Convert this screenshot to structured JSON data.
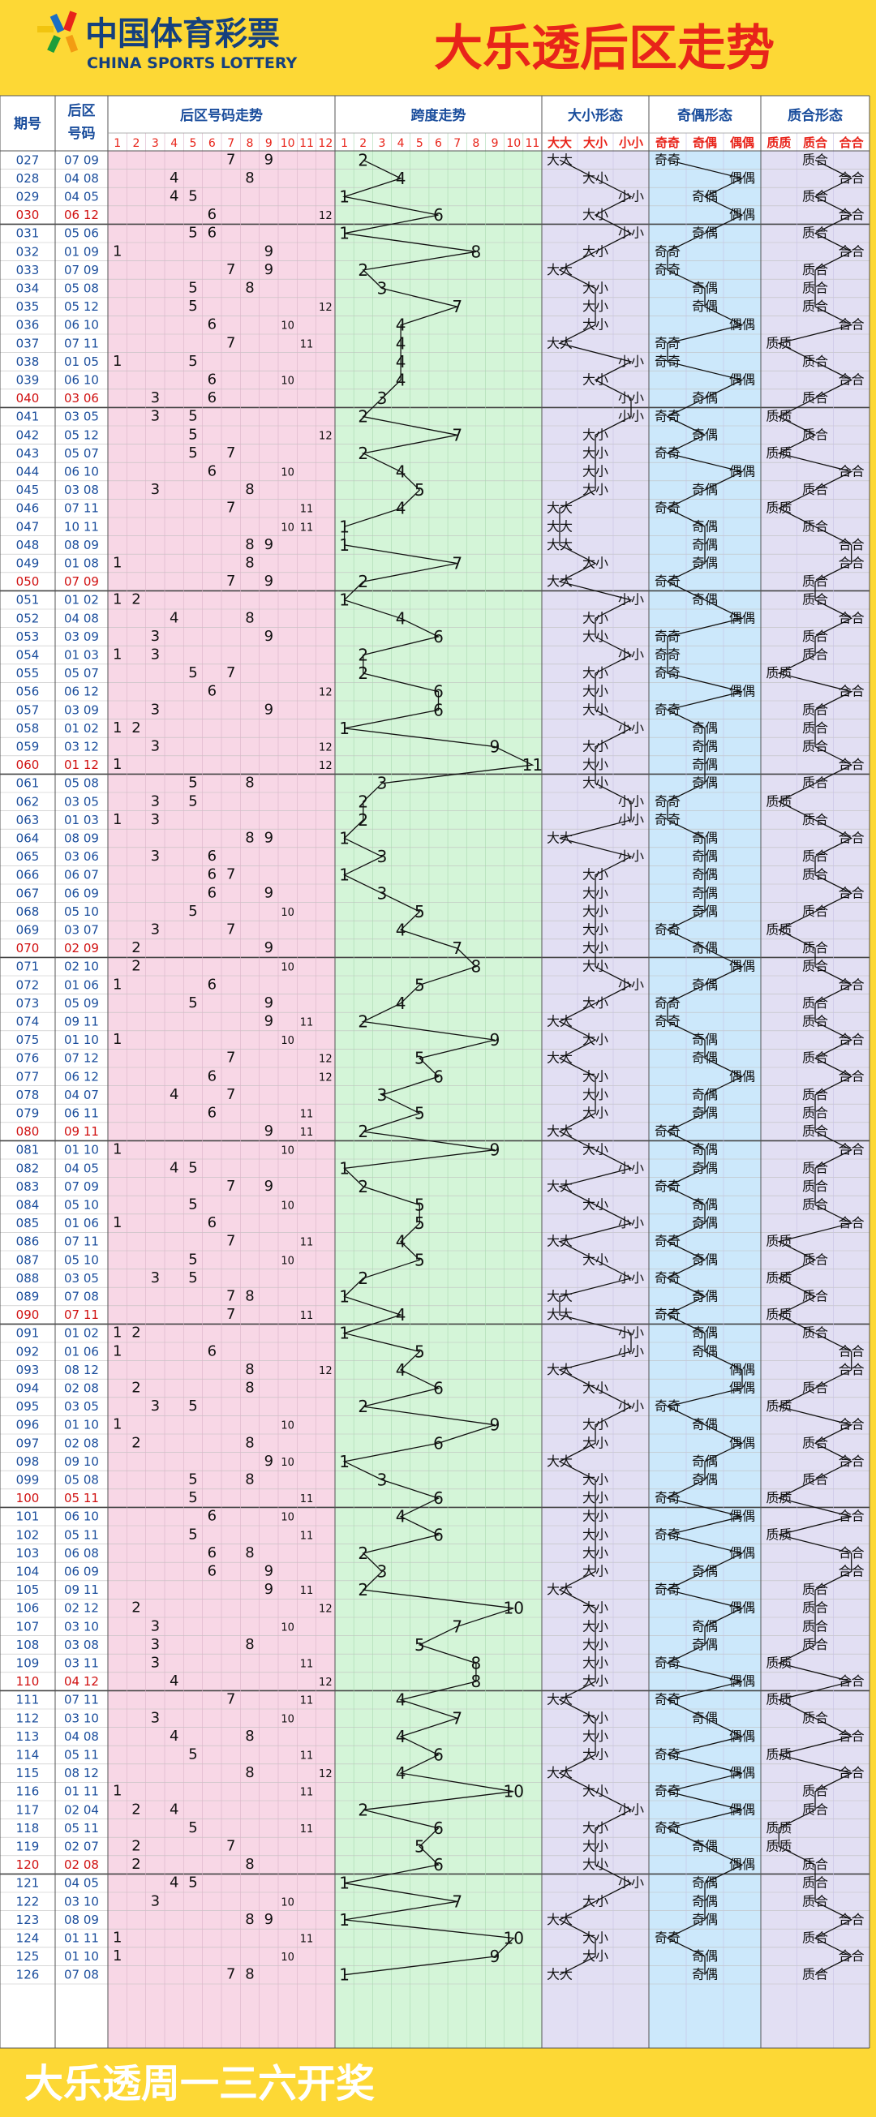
{
  "header": {
    "logo_cn": "中国体育彩票",
    "logo_en": "CHINA SPORTS LOTTERY",
    "title": "大乐透后区走势"
  },
  "columns": {
    "issue": "期号",
    "back_l1": "后区",
    "back_l2": "号码",
    "trend": "后区号码走势",
    "span": "跨度走势",
    "size": "大小形态",
    "parity": "奇偶形态",
    "prime": "质合形态"
  },
  "form_headers": {
    "size": [
      "大大",
      "大小",
      "小小"
    ],
    "parity": [
      "奇奇",
      "奇偶",
      "偶偶"
    ],
    "prime": [
      "质质",
      "质合",
      "合合"
    ]
  },
  "trend_numbers": [
    "1",
    "2",
    "3",
    "4",
    "5",
    "6",
    "7",
    "8",
    "9",
    "10",
    "11",
    "12"
  ],
  "span_numbers": [
    "1",
    "2",
    "3",
    "4",
    "5",
    "6",
    "7",
    "8",
    "9",
    "10",
    "11"
  ],
  "draws": [
    {
      "issue": "027",
      "nums": "07 09"
    },
    {
      "issue": "028",
      "nums": "04 08"
    },
    {
      "issue": "029",
      "nums": "04 05"
    },
    {
      "issue": "030",
      "nums": "06 12"
    },
    {
      "issue": "031",
      "nums": "05 06"
    },
    {
      "issue": "032",
      "nums": "01 09"
    },
    {
      "issue": "033",
      "nums": "07 09"
    },
    {
      "issue": "034",
      "nums": "05 08"
    },
    {
      "issue": "035",
      "nums": "05 12"
    },
    {
      "issue": "036",
      "nums": "06 10"
    },
    {
      "issue": "037",
      "nums": "07 11"
    },
    {
      "issue": "038",
      "nums": "01 05"
    },
    {
      "issue": "039",
      "nums": "06 10"
    },
    {
      "issue": "040",
      "nums": "03 06"
    },
    {
      "issue": "041",
      "nums": "03 05"
    },
    {
      "issue": "042",
      "nums": "05 12"
    },
    {
      "issue": "043",
      "nums": "05 07"
    },
    {
      "issue": "044",
      "nums": "06 10"
    },
    {
      "issue": "045",
      "nums": "03 08"
    },
    {
      "issue": "046",
      "nums": "07 11"
    },
    {
      "issue": "047",
      "nums": "10 11"
    },
    {
      "issue": "048",
      "nums": "08 09"
    },
    {
      "issue": "049",
      "nums": "01 08"
    },
    {
      "issue": "050",
      "nums": "07 09"
    },
    {
      "issue": "051",
      "nums": "01 02"
    },
    {
      "issue": "052",
      "nums": "04 08"
    },
    {
      "issue": "053",
      "nums": "03 09"
    },
    {
      "issue": "054",
      "nums": "01 03"
    },
    {
      "issue": "055",
      "nums": "05 07"
    },
    {
      "issue": "056",
      "nums": "06 12"
    },
    {
      "issue": "057",
      "nums": "03 09"
    },
    {
      "issue": "058",
      "nums": "01 02"
    },
    {
      "issue": "059",
      "nums": "03 12"
    },
    {
      "issue": "060",
      "nums": "01 12"
    },
    {
      "issue": "061",
      "nums": "05 08"
    },
    {
      "issue": "062",
      "nums": "03 05"
    },
    {
      "issue": "063",
      "nums": "01 03"
    },
    {
      "issue": "064",
      "nums": "08 09"
    },
    {
      "issue": "065",
      "nums": "03 06"
    },
    {
      "issue": "066",
      "nums": "06 07"
    },
    {
      "issue": "067",
      "nums": "06 09"
    },
    {
      "issue": "068",
      "nums": "05 10"
    },
    {
      "issue": "069",
      "nums": "03 07"
    },
    {
      "issue": "070",
      "nums": "02 09"
    },
    {
      "issue": "071",
      "nums": "02 10"
    },
    {
      "issue": "072",
      "nums": "01 06"
    },
    {
      "issue": "073",
      "nums": "05 09"
    },
    {
      "issue": "074",
      "nums": "09 11"
    },
    {
      "issue": "075",
      "nums": "01 10"
    },
    {
      "issue": "076",
      "nums": "07 12"
    },
    {
      "issue": "077",
      "nums": "06 12"
    },
    {
      "issue": "078",
      "nums": "04 07"
    },
    {
      "issue": "079",
      "nums": "06 11"
    },
    {
      "issue": "080",
      "nums": "09 11"
    },
    {
      "issue": "081",
      "nums": "01 10"
    },
    {
      "issue": "082",
      "nums": "04 05"
    },
    {
      "issue": "083",
      "nums": "07 09"
    },
    {
      "issue": "084",
      "nums": "05 10"
    },
    {
      "issue": "085",
      "nums": "01 06"
    },
    {
      "issue": "086",
      "nums": "07 11"
    },
    {
      "issue": "087",
      "nums": "05 10"
    },
    {
      "issue": "088",
      "nums": "03 05"
    },
    {
      "issue": "089",
      "nums": "07 08"
    },
    {
      "issue": "090",
      "nums": "07 11"
    },
    {
      "issue": "091",
      "nums": "01 02"
    },
    {
      "issue": "092",
      "nums": "01 06"
    },
    {
      "issue": "093",
      "nums": "08 12"
    },
    {
      "issue": "094",
      "nums": "02 08"
    },
    {
      "issue": "095",
      "nums": "03 05"
    },
    {
      "issue": "096",
      "nums": "01 10"
    },
    {
      "issue": "097",
      "nums": "02 08"
    },
    {
      "issue": "098",
      "nums": "09 10"
    },
    {
      "issue": "099",
      "nums": "05 08"
    },
    {
      "issue": "100",
      "nums": "05 11"
    },
    {
      "issue": "101",
      "nums": "06 10"
    },
    {
      "issue": "102",
      "nums": "05 11"
    },
    {
      "issue": "103",
      "nums": "06 08"
    },
    {
      "issue": "104",
      "nums": "06 09"
    },
    {
      "issue": "105",
      "nums": "09 11"
    },
    {
      "issue": "106",
      "nums": "02 12"
    },
    {
      "issue": "107",
      "nums": "03 10"
    },
    {
      "issue": "108",
      "nums": "03 08"
    },
    {
      "issue": "109",
      "nums": "03 11"
    },
    {
      "issue": "110",
      "nums": "04 12"
    },
    {
      "issue": "111",
      "nums": "07 11"
    },
    {
      "issue": "112",
      "nums": "03 10"
    },
    {
      "issue": "113",
      "nums": "04 08"
    },
    {
      "issue": "114",
      "nums": "05 11"
    },
    {
      "issue": "115",
      "nums": "08 12"
    },
    {
      "issue": "116",
      "nums": "01 11"
    },
    {
      "issue": "117",
      "nums": "02 04"
    },
    {
      "issue": "118",
      "nums": "05 11"
    },
    {
      "issue": "119",
      "nums": "02 07"
    },
    {
      "issue": "120",
      "nums": "02 08"
    },
    {
      "issue": "121",
      "nums": "04 05"
    },
    {
      "issue": "122",
      "nums": "03 10"
    },
    {
      "issue": "123",
      "nums": "08 09"
    },
    {
      "issue": "124",
      "nums": "01 11"
    },
    {
      "issue": "125",
      "nums": "01 10"
    },
    {
      "issue": "126",
      "nums": "07 08"
    }
  ],
  "footer": {
    "text": "大乐透周一三六开奖"
  },
  "colors": {
    "yellow": "#fdd835",
    "red": "#e8241a",
    "blue": "#1a4d9c",
    "pink": "#f8d7e6",
    "green": "#d4f5d8",
    "lavender": "#e2dff3",
    "lightblue": "#cce8fb",
    "header_bg": "#ffffff",
    "red_row_text": "#d01010"
  }
}
